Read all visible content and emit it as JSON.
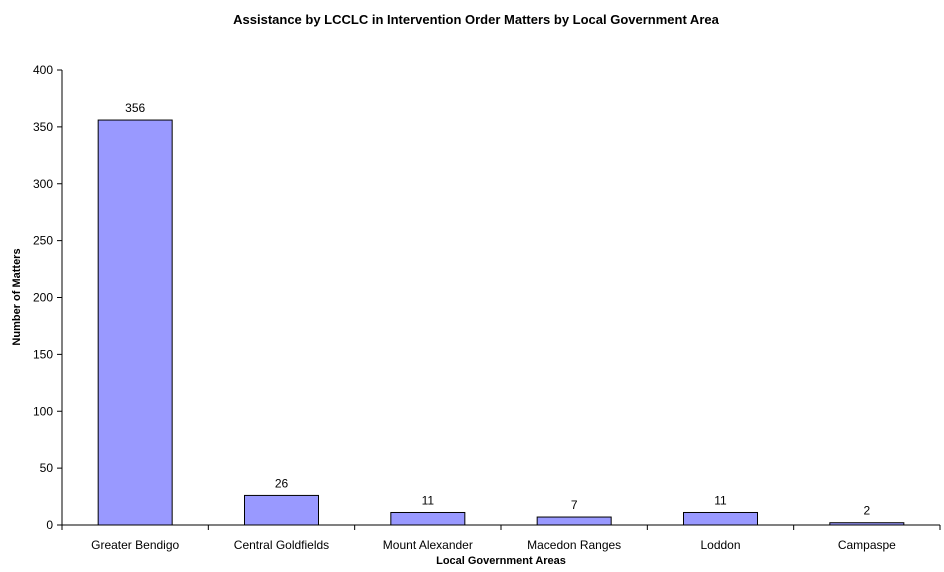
{
  "chart_data": {
    "type": "bar",
    "title": "Assistance by LCCLC in Intervention Order Matters by Local Government Area",
    "xlabel": "Local Government Areas",
    "ylabel": "Number of Matters",
    "categories": [
      "Greater Bendigo",
      "Central Goldfields",
      "Mount Alexander",
      "Macedon Ranges",
      "Loddon",
      "Campaspe"
    ],
    "values": [
      356,
      26,
      11,
      7,
      11,
      2
    ],
    "data_labels": [
      "356",
      "26",
      "11",
      "7",
      "11",
      "2"
    ],
    "ylim": [
      0,
      400
    ],
    "yticks": [
      "0",
      "50",
      "100",
      "150",
      "200",
      "250",
      "300",
      "350",
      "400"
    ],
    "grid": false,
    "legend": "none",
    "bar_color": "#9999ff",
    "bar_stroke": "#000000"
  }
}
